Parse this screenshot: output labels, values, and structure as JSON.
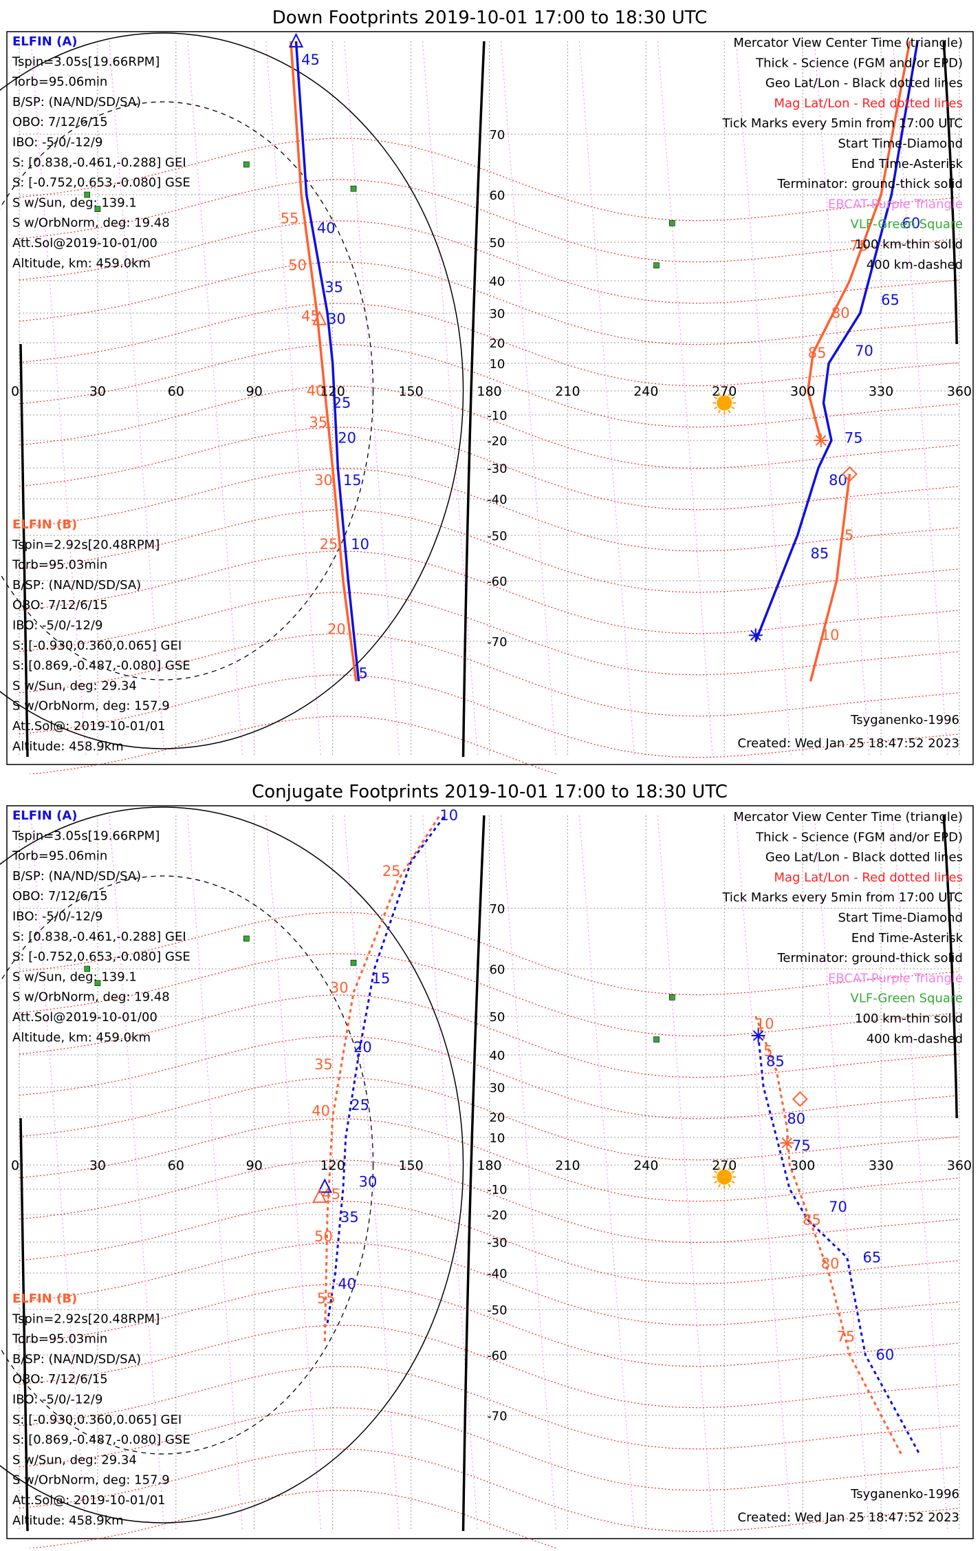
{
  "colors": {
    "elfin_a": "#1010e0",
    "elfin_b": "#ff6030",
    "mag_lines": "#ff2020",
    "geo_lines": "#000000",
    "ebcat": "#ee82ee",
    "vlf": "#33aa33",
    "sun": "#ffa500"
  },
  "panels": [
    {
      "title": "Down Footprints 2019-10-01 17:00 to 18:30 UTC",
      "legend": [
        "Mercator View Center Time (triangle)",
        "Thick - Science (FGM and/or EPD)",
        "Geo Lat/Lon - Black dotted lines",
        "Mag Lat/Lon - Red dotted lines",
        "Tick Marks every 5min from 17:00 UTC",
        "Start Time-Diamond",
        "End Time-Asterisk",
        "Terminator: ground-thick solid",
        "EBCAT-Purple Triangle",
        "VLF-Green Square",
        "100 km-thin solid",
        "400 km-dashed"
      ],
      "elfin_a": {
        "title": "ELFIN (A)",
        "lines": [
          "Tspin=3.05s[19.66RPM]",
          "Torb=95.06min",
          "B/SP: (NA/ND/SD/SA)",
          "OBO: 7/12/6/15",
          "IBO: -5/0/-12/9",
          "S: [0.838,-0.461,-0.288] GEI",
          "S: [-0.752,0.653,-0.080] GSE",
          "S w/Sun, deg: 139.1",
          "S w/OrbNorm, deg: 19.48",
          "Att.Sol@2019-10-01/00",
          "Altitude, km: 459.0km"
        ]
      },
      "elfin_b": {
        "title": "ELFIN (B)",
        "lines": [
          "Tspin=2.92s[20.48RPM]",
          "Torb=95.03min",
          "B/SP: (NA/ND/SD/SA)",
          "OBO: 7/12/6/15",
          "IBO: -5/0/-12/9",
          "S: [-0.930,0.360,0.065] GEI",
          "S: [0.869,-0.487,-0.080] GSE",
          "S w/Sun, deg: 29.34",
          "S w/OrbNorm, deg: 157.9",
          "Att.Sol@: 2019-10-01/01",
          "Altitude: 458.9km"
        ]
      },
      "model": "Tsyganenko-1996",
      "created": "Created: Wed Jan 25 18:47:52 2023",
      "lon_labels": [
        "0",
        "30",
        "60",
        "90",
        "120",
        "150",
        "180",
        "210",
        "240",
        "270",
        "300",
        "330",
        "360"
      ],
      "lat_labels": [
        "70",
        "60",
        "50",
        "40",
        "30",
        "20",
        "10",
        "-10",
        "-20",
        "-30",
        "-40",
        "-50",
        "-60",
        "-70"
      ],
      "map_data": {
        "elfin_a_track_west": [
          [
            106,
            80
          ],
          [
            110,
            60
          ],
          [
            118,
            30
          ],
          [
            120,
            10
          ],
          [
            121,
            -10
          ],
          [
            122,
            -30
          ],
          [
            126,
            -60
          ],
          [
            130,
            -75
          ]
        ],
        "elfin_a_labels_west": [
          [
            "45",
            108,
            78
          ],
          [
            "40",
            114,
            53
          ],
          [
            "35",
            117,
            38
          ],
          [
            "30",
            118,
            28
          ],
          [
            "25",
            120,
            -5
          ],
          [
            "20",
            122,
            -19
          ],
          [
            "15",
            124,
            -34
          ],
          [
            "10",
            127,
            -52
          ],
          [
            "5",
            130,
            -74
          ]
        ],
        "elfin_b_track_west": [
          [
            104,
            80
          ],
          [
            108,
            60
          ],
          [
            114,
            30
          ],
          [
            117,
            0
          ],
          [
            120,
            -30
          ],
          [
            124,
            -60
          ],
          [
            129,
            -75
          ]
        ],
        "elfin_b_labels_west": [
          [
            "55",
            100,
            55
          ],
          [
            "50",
            103,
            44
          ],
          [
            "45",
            108,
            29
          ],
          [
            "40",
            110,
            0
          ],
          [
            "35",
            111,
            -13
          ],
          [
            "30",
            113,
            -34
          ],
          [
            "25",
            115,
            -52
          ],
          [
            "20",
            118,
            -68
          ]
        ],
        "elfin_a_track_east": [
          [
            344,
            80
          ],
          [
            334,
            60
          ],
          [
            322,
            30
          ],
          [
            310,
            10
          ],
          [
            308,
            -5
          ],
          [
            311,
            -20
          ],
          [
            306,
            -30
          ],
          [
            298,
            -50
          ],
          [
            282,
            -70
          ]
        ],
        "elfin_a_labels_east": [
          [
            "60",
            338,
            54
          ],
          [
            "65",
            330,
            34
          ],
          [
            "70",
            320,
            16
          ],
          [
            "75",
            316,
            -19
          ],
          [
            "80",
            310,
            -34
          ],
          [
            "85",
            303,
            -54
          ]
        ],
        "elfin_b_track_east": [
          [
            341,
            80
          ],
          [
            330,
            60
          ],
          [
            318,
            40
          ],
          [
            304,
            15
          ],
          [
            302,
            0
          ],
          [
            307,
            -20
          ]
        ],
        "elfin_b_labels_east": [
          [
            "75",
            318,
            49
          ],
          [
            "80",
            311,
            30
          ],
          [
            "85",
            302,
            15
          ]
        ],
        "elfin_b_track2_east": [
          [
            318,
            -32
          ],
          [
            313,
            -60
          ],
          [
            303,
            -75
          ]
        ],
        "elfin_b_labels2_east": [
          [
            "5",
            316,
            -50
          ],
          [
            "10",
            307,
            -69
          ]
        ],
        "markers": {
          "a_view_triangle": [
            106,
            80
          ],
          "b_view_triangle": [
            115,
            28
          ],
          "a_end_asterisk": [
            282,
            -69
          ],
          "b_end_asterisk": [
            307,
            -20
          ],
          "b_start_diamond": [
            318,
            -32
          ],
          "sun": [
            270,
            -5
          ]
        },
        "vlf": [
          [
            87,
            65
          ],
          [
            26,
            60
          ],
          [
            30,
            57
          ],
          [
            128,
            61
          ],
          [
            244,
            44
          ],
          [
            250,
            54
          ]
        ],
        "ellipse_center_lon": 55,
        "ellipse_rx_lon": 115,
        "ellipse_ry_lat": 90
      }
    },
    {
      "title": "Conjugate Footprints 2019-10-01 17:00 to 18:30 UTC",
      "legend": [
        "Mercator View Center Time (triangle)",
        "Thick - Science (FGM and/or EPD)",
        "Geo Lat/Lon - Black dotted lines",
        "Mag Lat/Lon - Red dotted lines",
        "Tick Marks every 5min from 17:00 UTC",
        "Start Time-Diamond",
        "End Time-Asterisk",
        "Terminator: ground-thick solid",
        "EBCAT-Purple Triangle",
        "VLF-Green Square",
        "100 km-thin solid",
        "400 km-dashed"
      ],
      "elfin_a": {
        "title": "ELFIN (A)",
        "lines": [
          "Tspin=3.05s[19.66RPM]",
          "Torb=95.06min",
          "B/SP: (NA/ND/SD/SA)",
          "OBO: 7/12/6/15",
          "IBO: -5/0/-12/9",
          "S: [0.838,-0.461,-0.288] GEI",
          "S: [-0.752,0.653,-0.080] GSE",
          "S w/Sun, deg: 139.1",
          "S w/OrbNorm, deg: 19.48",
          "Att.Sol@2019-10-01/00",
          "Altitude, km: 459.0km"
        ]
      },
      "elfin_b": {
        "title": "ELFIN (B)",
        "lines": [
          "Tspin=2.92s[20.48RPM]",
          "Torb=95.03min",
          "B/SP: (NA/ND/SD/SA)",
          "OBO: 7/12/6/15",
          "IBO: -5/0/-12/9",
          "S: [-0.930,0.360,0.065] GEI",
          "S: [0.869,-0.487,-0.080] GSE",
          "S w/Sun, deg: 29.34",
          "S w/OrbNorm, deg: 157.9",
          "Att.Sol@: 2019-10-01/01",
          "Altitude: 458.9km"
        ]
      },
      "model": "Tsyganenko-1996",
      "created": "Created: Wed Jan 25 18:47:52 2023",
      "lon_labels": [
        "0",
        "30",
        "60",
        "90",
        "120",
        "150",
        "180",
        "210",
        "240",
        "270",
        "300",
        "330",
        "360"
      ],
      "lat_labels": [
        "70",
        "60",
        "50",
        "40",
        "30",
        "20",
        "10",
        "-10",
        "-20",
        "-30",
        "-40",
        "-50",
        "-60",
        "-70"
      ],
      "map_data": {
        "elfin_a_track_west": [
          [
            118,
            -53
          ],
          [
            121,
            -40
          ],
          [
            124,
            -10
          ],
          [
            125,
            10
          ],
          [
            130,
            40
          ],
          [
            136,
            60
          ],
          [
            150,
            75
          ],
          [
            163,
            80
          ]
        ],
        "elfin_a_labels_west": [
          [
            "40",
            122,
            -43
          ],
          [
            "35",
            123,
            -21
          ],
          [
            "30",
            130,
            -7
          ],
          [
            "25",
            127,
            24
          ],
          [
            "20",
            128,
            42
          ],
          [
            "15",
            135,
            58
          ],
          [
            "10",
            161,
            80
          ]
        ],
        "elfin_b_track_west": [
          [
            117,
            -57
          ],
          [
            118,
            -20
          ],
          [
            120,
            20
          ],
          [
            128,
            55
          ],
          [
            145,
            73
          ],
          [
            161,
            80
          ]
        ],
        "elfin_b_labels_west": [
          [
            "55",
            114,
            -47
          ],
          [
            "50",
            113,
            -28
          ],
          [
            "45",
            116,
            -12
          ],
          [
            "40",
            112,
            22
          ],
          [
            "35",
            113,
            37
          ],
          [
            "30",
            119,
            56
          ],
          [
            "25",
            139,
            74
          ]
        ],
        "elfin_a_track_east": [
          [
            283,
            45
          ],
          [
            285,
            30
          ],
          [
            290,
            10
          ],
          [
            295,
            -10
          ],
          [
            302,
            -22
          ],
          [
            317,
            -35
          ],
          [
            324,
            -60
          ],
          [
            345,
            -75
          ]
        ],
        "elfin_a_labels_east": [
          [
            "85",
            286,
            38
          ],
          [
            "80",
            294,
            19
          ],
          [
            "75",
            296,
            7
          ],
          [
            "70",
            310,
            -17
          ],
          [
            "65",
            323,
            -35
          ],
          [
            "60",
            328,
            -60
          ]
        ],
        "elfin_b_track_east": [
          [
            282,
            50
          ],
          [
            290,
            35
          ],
          [
            294,
            15
          ],
          [
            295,
            0
          ],
          [
            302,
            -20
          ],
          [
            310,
            -40
          ],
          [
            318,
            -60
          ],
          [
            338,
            -75
          ]
        ],
        "elfin_b_labels_east": [
          [
            "10",
            282,
            48
          ],
          [
            "5",
            285,
            41
          ],
          [
            "85",
            300,
            -22
          ],
          [
            "80",
            307,
            -37
          ],
          [
            "75",
            313,
            -56
          ]
        ],
        "markers": {
          "a_view_triangle": [
            117,
            -9
          ],
          "b_view_triangle": [
            115,
            -13
          ],
          "a_end_asterisk": [
            283,
            45
          ],
          "b_end_asterisk": [
            294,
            8
          ],
          "b_start_diamond": [
            299,
            26
          ],
          "sun": [
            270,
            -5
          ]
        },
        "vlf": [
          [
            87,
            65
          ],
          [
            26,
            60
          ],
          [
            30,
            57
          ],
          [
            128,
            61
          ],
          [
            244,
            44
          ],
          [
            250,
            54
          ]
        ],
        "ellipse_center_lon": 55,
        "ellipse_rx_lon": 115,
        "ellipse_ry_lat": 90
      }
    }
  ]
}
